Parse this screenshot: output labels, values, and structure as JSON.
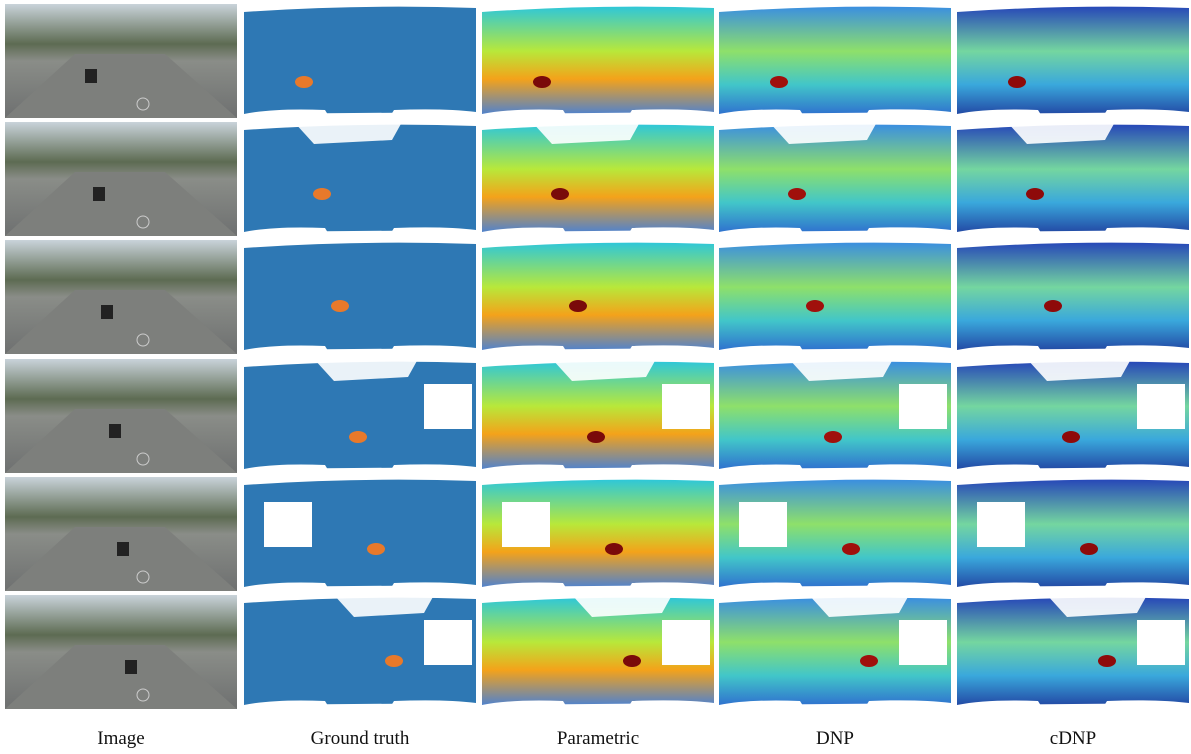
{
  "columns": [
    "Image",
    "Ground truth",
    "Parametric",
    "DNP",
    "cDNP"
  ]
}
